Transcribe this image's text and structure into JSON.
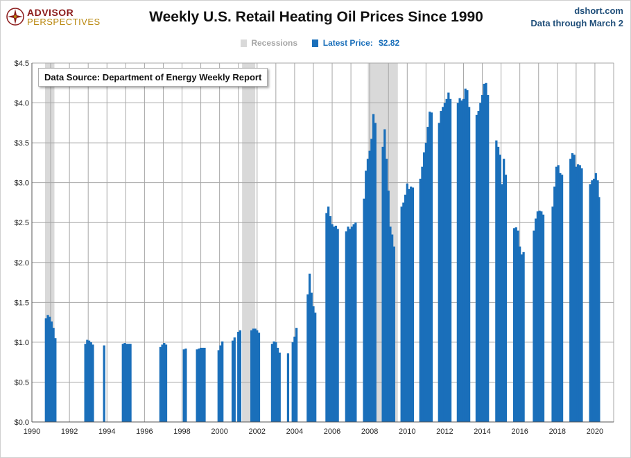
{
  "header": {
    "logo_line1": "ADVISOR",
    "logo_line2": "PERSPECTIVES",
    "title": "Weekly U.S. Retail Heating Oil Prices Since 1990",
    "source_site": "dshort.com",
    "data_through": "Data through March 2"
  },
  "legend": {
    "recessions_label": "Recessions",
    "latest_label": "Latest Price:",
    "latest_value": "$2.82"
  },
  "annotation": {
    "source_note": "Data Source: Department of Energy Weekly Report"
  },
  "colors": {
    "bars": "#1a6fba",
    "recession": "#d9d9d9",
    "grid": "#a6a6a6",
    "legend_recession_text": "#a6a6a6",
    "legend_latest_text": "#1a6fba"
  },
  "chart_data": {
    "type": "bar",
    "title": "Weekly U.S. Retail Heating Oil Prices Since 1990",
    "xlabel": "",
    "ylabel": "",
    "xlim": [
      1990,
      2021
    ],
    "ylim": [
      0,
      4.5
    ],
    "x_ticks": [
      "1990",
      "1992",
      "1994",
      "1996",
      "1998",
      "2000",
      "2002",
      "2004",
      "2006",
      "2008",
      "2010",
      "2012",
      "2014",
      "2016",
      "2018",
      "2020"
    ],
    "x_tick_values": [
      1990,
      1992,
      1994,
      1996,
      1998,
      2000,
      2002,
      2004,
      2006,
      2008,
      2010,
      2012,
      2014,
      2016,
      2018,
      2020
    ],
    "y_ticks": [
      "$0.0",
      "$0.5",
      "$1.0",
      "$1.5",
      "$2.0",
      "$2.5",
      "$3.0",
      "$3.5",
      "$4.0",
      "$4.5"
    ],
    "y_tick_values": [
      0,
      0.5,
      1.0,
      1.5,
      2.0,
      2.5,
      3.0,
      3.5,
      4.0,
      4.5
    ],
    "grid": true,
    "recessions": [
      [
        1990.7,
        1991.2
      ],
      [
        2001.2,
        2001.9
      ],
      [
        2007.9,
        2009.5
      ]
    ],
    "series": [
      {
        "points": [
          [
            1990.75,
            1.3
          ],
          [
            1990.85,
            1.34
          ],
          [
            1990.95,
            1.32
          ],
          [
            1991.05,
            1.26
          ],
          [
            1991.15,
            1.18
          ],
          [
            1991.25,
            1.05
          ],
          [
            1992.85,
            0.98
          ],
          [
            1992.95,
            1.03
          ],
          [
            1993.05,
            1.02
          ],
          [
            1993.15,
            1.0
          ],
          [
            1993.25,
            0.97
          ],
          [
            1993.85,
            0.96
          ],
          [
            1994.85,
            0.98
          ],
          [
            1994.95,
            0.99
          ],
          [
            1995.05,
            0.98
          ],
          [
            1995.15,
            0.98
          ],
          [
            1995.25,
            0.98
          ],
          [
            1996.85,
            0.94
          ],
          [
            1996.95,
            0.97
          ],
          [
            1997.05,
            0.99
          ],
          [
            1997.15,
            0.97
          ],
          [
            1998.1,
            0.91
          ],
          [
            1998.2,
            0.92
          ],
          [
            1998.8,
            0.91
          ],
          [
            1998.9,
            0.92
          ],
          [
            1999.0,
            0.93
          ],
          [
            1999.1,
            0.93
          ],
          [
            1999.2,
            0.93
          ],
          [
            1999.95,
            0.9
          ],
          [
            2000.05,
            0.96
          ],
          [
            2000.15,
            1.01
          ],
          [
            2000.7,
            1.02
          ],
          [
            2000.8,
            1.06
          ],
          [
            2001.0,
            1.13
          ],
          [
            2001.1,
            1.15
          ],
          [
            2001.7,
            1.15
          ],
          [
            2001.8,
            1.17
          ],
          [
            2001.9,
            1.17
          ],
          [
            2002.0,
            1.15
          ],
          [
            2002.1,
            1.12
          ],
          [
            2002.8,
            0.98
          ],
          [
            2002.9,
            1.01
          ],
          [
            2003.0,
            1.0
          ],
          [
            2003.1,
            0.93
          ],
          [
            2003.2,
            0.87
          ],
          [
            2003.65,
            0.86
          ],
          [
            2003.9,
            1.0
          ],
          [
            2004.0,
            1.07
          ],
          [
            2004.1,
            1.18
          ],
          [
            2004.7,
            1.6
          ],
          [
            2004.8,
            1.86
          ],
          [
            2004.9,
            1.62
          ],
          [
            2005.0,
            1.45
          ],
          [
            2005.1,
            1.37
          ],
          [
            2005.7,
            2.62
          ],
          [
            2005.8,
            2.7
          ],
          [
            2005.9,
            2.58
          ],
          [
            2006.0,
            2.48
          ],
          [
            2006.1,
            2.45
          ],
          [
            2006.2,
            2.46
          ],
          [
            2006.3,
            2.42
          ],
          [
            2006.75,
            2.39
          ],
          [
            2006.85,
            2.45
          ],
          [
            2006.95,
            2.42
          ],
          [
            2007.05,
            2.45
          ],
          [
            2007.15,
            2.48
          ],
          [
            2007.25,
            2.5
          ],
          [
            2007.7,
            2.8
          ],
          [
            2007.8,
            3.15
          ],
          [
            2007.9,
            3.3
          ],
          [
            2008.0,
            3.4
          ],
          [
            2008.1,
            3.55
          ],
          [
            2008.2,
            3.86
          ],
          [
            2008.3,
            3.75
          ],
          [
            2008.7,
            3.45
          ],
          [
            2008.8,
            3.67
          ],
          [
            2008.9,
            3.3
          ],
          [
            2009.0,
            2.9
          ],
          [
            2009.1,
            2.45
          ],
          [
            2009.2,
            2.35
          ],
          [
            2009.3,
            2.2
          ],
          [
            2009.7,
            2.7
          ],
          [
            2009.8,
            2.75
          ],
          [
            2009.9,
            2.85
          ],
          [
            2010.0,
            2.99
          ],
          [
            2010.1,
            2.92
          ],
          [
            2010.2,
            2.95
          ],
          [
            2010.3,
            2.94
          ],
          [
            2010.7,
            3.05
          ],
          [
            2010.8,
            3.2
          ],
          [
            2010.9,
            3.38
          ],
          [
            2011.0,
            3.5
          ],
          [
            2011.1,
            3.7
          ],
          [
            2011.2,
            3.89
          ],
          [
            2011.3,
            3.88
          ],
          [
            2011.7,
            3.75
          ],
          [
            2011.8,
            3.9
          ],
          [
            2011.9,
            3.95
          ],
          [
            2012.0,
            4.0
          ],
          [
            2012.1,
            4.05
          ],
          [
            2012.2,
            4.13
          ],
          [
            2012.3,
            4.05
          ],
          [
            2012.7,
            4.0
          ],
          [
            2012.8,
            4.06
          ],
          [
            2012.9,
            4.03
          ],
          [
            2013.0,
            4.05
          ],
          [
            2013.1,
            4.18
          ],
          [
            2013.2,
            4.16
          ],
          [
            2013.3,
            3.95
          ],
          [
            2013.7,
            3.85
          ],
          [
            2013.8,
            3.9
          ],
          [
            2013.9,
            4.0
          ],
          [
            2014.0,
            4.1
          ],
          [
            2014.1,
            4.24
          ],
          [
            2014.2,
            4.25
          ],
          [
            2014.3,
            4.1
          ],
          [
            2014.75,
            3.53
          ],
          [
            2014.85,
            3.45
          ],
          [
            2014.95,
            3.35
          ],
          [
            2015.05,
            2.98
          ],
          [
            2015.15,
            3.3
          ],
          [
            2015.25,
            3.1
          ],
          [
            2015.7,
            2.43
          ],
          [
            2015.8,
            2.44
          ],
          [
            2015.9,
            2.4
          ],
          [
            2016.0,
            2.2
          ],
          [
            2016.1,
            2.1
          ],
          [
            2016.2,
            2.13
          ],
          [
            2016.75,
            2.4
          ],
          [
            2016.85,
            2.55
          ],
          [
            2016.95,
            2.64
          ],
          [
            2017.05,
            2.65
          ],
          [
            2017.15,
            2.64
          ],
          [
            2017.25,
            2.6
          ],
          [
            2017.75,
            2.7
          ],
          [
            2017.85,
            2.95
          ],
          [
            2017.95,
            3.2
          ],
          [
            2018.05,
            3.22
          ],
          [
            2018.15,
            3.12
          ],
          [
            2018.25,
            3.1
          ],
          [
            2018.7,
            3.3
          ],
          [
            2018.8,
            3.37
          ],
          [
            2018.9,
            3.35
          ],
          [
            2019.0,
            3.2
          ],
          [
            2019.1,
            3.23
          ],
          [
            2019.2,
            3.22
          ],
          [
            2019.3,
            3.18
          ],
          [
            2019.75,
            2.98
          ],
          [
            2019.85,
            3.03
          ],
          [
            2019.95,
            3.05
          ],
          [
            2020.05,
            3.12
          ],
          [
            2020.15,
            3.03
          ],
          [
            2020.22,
            2.82
          ]
        ]
      }
    ]
  }
}
